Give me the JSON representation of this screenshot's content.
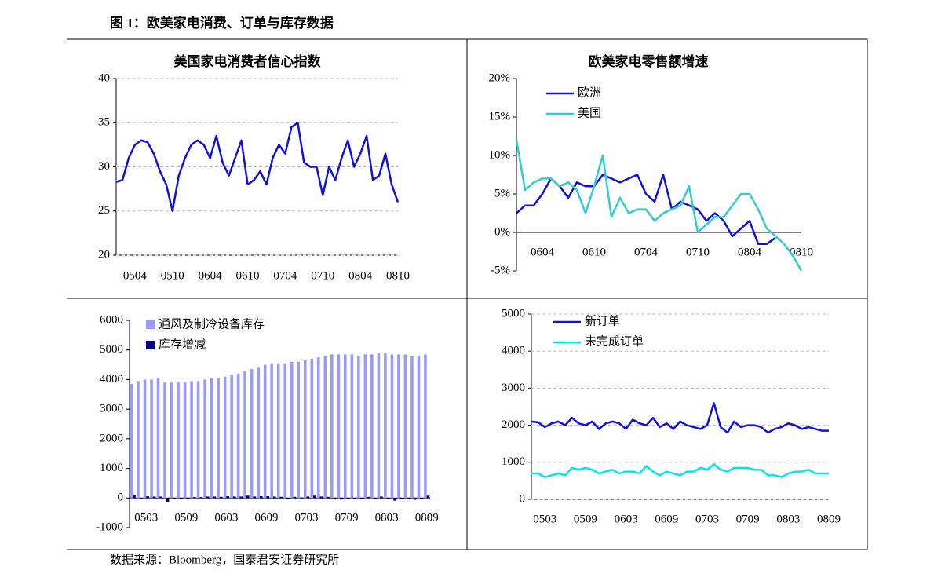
{
  "title": "图 1：欧美家电消费、订单与库存数据",
  "source": "数据来源：Bloomberg，国泰君安证券研究所",
  "chart_data": [
    {
      "type": "line",
      "title": "美国家电消费者信心指数",
      "categories": [
        null,
        null,
        null,
        "0504",
        null,
        null,
        null,
        null,
        null,
        "0510",
        null,
        null,
        null,
        null,
        null,
        "0604",
        null,
        null,
        null,
        null,
        null,
        "0610",
        null,
        null,
        null,
        null,
        null,
        "0704",
        null,
        null,
        null,
        null,
        null,
        "0710",
        null,
        null,
        null,
        null,
        null,
        "0804",
        null,
        null,
        null,
        null,
        null,
        "0810"
      ],
      "series": [
        {
          "color": "#1010e0",
          "values": [
            28.3,
            28.5,
            31,
            32.5,
            33,
            32.8,
            31.5,
            29.5,
            28,
            25,
            29,
            31,
            32.5,
            33,
            32.5,
            31,
            33.5,
            30.5,
            29,
            31,
            33,
            28,
            28.5,
            29.5,
            28,
            31,
            32.5,
            31.5,
            34.5,
            35,
            30.5,
            30,
            30,
            26.8,
            30,
            28.5,
            31,
            33,
            30,
            31.5,
            33.5,
            28.5,
            29,
            31.5,
            28,
            26
          ]
        }
      ],
      "ylim": [
        20,
        40
      ],
      "yticks": [
        20,
        25,
        30,
        35,
        40
      ],
      "grid": true
    },
    {
      "type": "line",
      "title": "欧美家电零售额增速",
      "categories": [
        null,
        null,
        null,
        "0604",
        null,
        null,
        null,
        null,
        null,
        "0610",
        null,
        null,
        null,
        null,
        null,
        "0704",
        null,
        null,
        null,
        null,
        null,
        "0710",
        null,
        null,
        null,
        null,
        null,
        "0804",
        null,
        null,
        null,
        null,
        null,
        "0810"
      ],
      "series": [
        {
          "name": "欧洲",
          "color": "#1010e0",
          "values": [
            2.5,
            3.5,
            3.5,
            5,
            7,
            6,
            4.5,
            6.5,
            6,
            6,
            7.5,
            7,
            6.5,
            7,
            7.5,
            5,
            4,
            7.5,
            3,
            4,
            3.5,
            3,
            1.5,
            2.5,
            1.5,
            -0.5,
            0.5,
            1.5,
            -1.5,
            -1.5,
            -0.7,
            null,
            null,
            null
          ]
        },
        {
          "name": "美国",
          "color": "#33cccc",
          "values": [
            12,
            5.5,
            6.5,
            7,
            7,
            6,
            6.5,
            5.5,
            2.5,
            6,
            10,
            2,
            4.5,
            2.5,
            3,
            3,
            1.5,
            2.5,
            3,
            3.5,
            6,
            0,
            1,
            2,
            2,
            3.5,
            5,
            5,
            3,
            0.5,
            -0.5,
            -1.5,
            -3,
            -5
          ]
        }
      ],
      "ylim": [
        -5,
        20
      ],
      "yticks": [
        {
          "value": -5,
          "label": "-5%"
        },
        {
          "value": 0,
          "label": "0%"
        },
        {
          "value": 5,
          "label": "5%"
        },
        {
          "value": 10,
          "label": "10%"
        },
        {
          "value": 15,
          "label": "15%"
        },
        {
          "value": 20,
          "label": "20%"
        }
      ],
      "grid": false,
      "legend": "upper left"
    },
    {
      "type": "bar",
      "categories": [
        null,
        null,
        "0503",
        null,
        null,
        null,
        null,
        null,
        "0509",
        null,
        null,
        null,
        null,
        null,
        "0603",
        null,
        null,
        null,
        null,
        null,
        "0609",
        null,
        null,
        null,
        null,
        null,
        "0703",
        null,
        null,
        null,
        null,
        null,
        "0709",
        null,
        null,
        null,
        null,
        null,
        "0803",
        null,
        null,
        null,
        null,
        null,
        "0809"
      ],
      "series": [
        {
          "name": "通风及制冷设备库存",
          "color": "#9999ff",
          "values": [
            3850,
            3950,
            4000,
            4000,
            4050,
            3900,
            3900,
            3900,
            3900,
            3950,
            3950,
            4000,
            4050,
            4050,
            4100,
            4150,
            4200,
            4300,
            4350,
            4400,
            4500,
            4550,
            4550,
            4550,
            4600,
            4600,
            4650,
            4700,
            4750,
            4800,
            4850,
            4850,
            4850,
            4850,
            4800,
            4850,
            4850,
            4900,
            4900,
            4850,
            4850,
            4850,
            4800,
            4800,
            4850
          ]
        },
        {
          "name": "库存增减",
          "color": "#000080",
          "values": [
            100,
            0,
            60,
            50,
            50,
            -150,
            -30,
            -30,
            -20,
            30,
            30,
            50,
            50,
            40,
            60,
            50,
            50,
            80,
            50,
            60,
            60,
            50,
            40,
            -20,
            40,
            20,
            50,
            80,
            50,
            40,
            -50,
            -50,
            -20,
            -30,
            -40,
            40,
            -20,
            50,
            -30,
            -90,
            -40,
            -40,
            -60,
            -20,
            80
          ]
        }
      ],
      "ylim": [
        -1000,
        6000
      ],
      "yticks": [
        -1000,
        0,
        1000,
        2000,
        3000,
        4000,
        5000,
        6000
      ],
      "grid": false,
      "legend": "upper left"
    },
    {
      "type": "line",
      "categories": [
        null,
        null,
        "0503",
        null,
        null,
        null,
        null,
        null,
        "0509",
        null,
        null,
        null,
        null,
        null,
        "0603",
        null,
        null,
        null,
        null,
        null,
        "0609",
        null,
        null,
        null,
        null,
        null,
        "0703",
        null,
        null,
        null,
        null,
        null,
        "0709",
        null,
        null,
        null,
        null,
        null,
        "0803",
        null,
        null,
        null,
        null,
        null,
        "0809"
      ],
      "series": [
        {
          "name": "新订单",
          "color": "#1010e0",
          "values": [
            2100,
            2080,
            1950,
            2050,
            2100,
            2000,
            2200,
            2050,
            2000,
            2100,
            1900,
            2050,
            2100,
            2050,
            1900,
            2150,
            2050,
            2000,
            2200,
            1950,
            2050,
            1900,
            2100,
            2000,
            1950,
            1900,
            2000,
            2600,
            1950,
            1800,
            2100,
            1950,
            2000,
            2000,
            1950,
            1800,
            1900,
            1950,
            2050,
            2000,
            1900,
            1950,
            1900,
            1850,
            1850
          ]
        },
        {
          "name": "未完成订单",
          "color": "#00e5ee",
          "values": [
            700,
            700,
            600,
            650,
            700,
            650,
            850,
            800,
            850,
            800,
            700,
            750,
            800,
            700,
            750,
            750,
            700,
            900,
            750,
            650,
            750,
            700,
            650,
            750,
            750,
            850,
            800,
            950,
            800,
            750,
            850,
            850,
            850,
            800,
            800,
            650,
            650,
            600,
            700,
            750,
            750,
            800,
            700,
            700,
            700
          ]
        }
      ],
      "ylim": [
        0,
        5000
      ],
      "yticks": [
        0,
        1000,
        2000,
        3000,
        4000,
        5000
      ],
      "grid": true,
      "legend": "upper left"
    }
  ]
}
